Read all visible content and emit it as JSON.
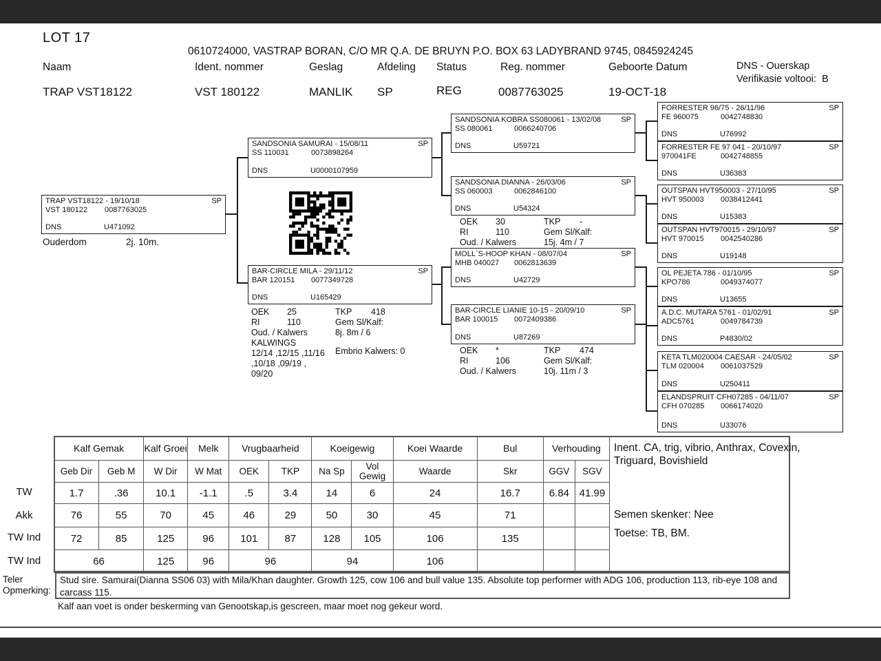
{
  "colors": {
    "top_bar": "#282828",
    "bottom_bar": "#282828",
    "divider": "#4a4a4a",
    "table_border": "#555555"
  },
  "page": {
    "lot_label": "LOT 17",
    "owner_line": "0610724000, VASTRAP BORAN, C/O MR Q.A. DE BRUYN P.O. BOX 63 LADYBRAND 9745, 0845924245",
    "footer_note": "Kalf aan voet  is onder beskerming van Genootskap,is gescreen, maar moet nog gekeur word."
  },
  "header": {
    "labels": {
      "naam": "Naam",
      "ident": "Ident. nommer",
      "geslag": "Geslag",
      "afdeling": "Afdeling",
      "status": "Status",
      "reg": "Reg. nommer",
      "geboorte": "Geboorte Datum",
      "dns_line1": "DNS - Ouerskap",
      "dns_line2": "Verifikasie voltooi:  B"
    },
    "values": {
      "naam": "TRAP VST18122",
      "ident": "VST 180122",
      "geslag": "MANLIK",
      "afdeling": "SP",
      "status": "REG",
      "reg": "0087763025",
      "geboorte": "19-OCT-18"
    }
  },
  "pedigree": {
    "animal": {
      "title": "TRAP VST18122 - 19/10/18",
      "flag": "SP",
      "id1": "VST 180122",
      "id2": "0087763025",
      "dns_label": "DNS",
      "dns": "U471092"
    },
    "ouderdom": {
      "label": "Ouderdom",
      "value": "2j. 10m."
    },
    "sire": {
      "title": "SANDSONIA SAMURAI - 15/08/11",
      "flag": "SP",
      "id1": "SS 110031",
      "id2": "0073898264",
      "dns_label": "DNS",
      "dns": "U0000107959"
    },
    "dam": {
      "title": "BAR-CIRCLE MILA - 29/11/12",
      "flag": "SP",
      "id1": "BAR 120151",
      "id2": "0077349728",
      "dns_label": "DNS",
      "dns": "U165429"
    },
    "pgs": {
      "title": "SANDSONIA KOBRA SS080061 - 13/02/08",
      "flag": "SP",
      "id1": "SS 080061",
      "id2": "0066240706",
      "dns_label": "DNS",
      "dns": "U59721"
    },
    "pgd": {
      "title": "SANDSONIA DIANNA - 26/03/06",
      "flag": "SP",
      "id1": "SS 060003",
      "id2": "0062846100",
      "dns_label": "DNS",
      "dns": "U54324"
    },
    "mgs": {
      "title": "MOLL`S-HOOP KHAN - 08/07/04",
      "flag": "SP",
      "id1": "MHB 040027",
      "id2": "0062813639",
      "dns_label": "DNS",
      "dns": "U42729"
    },
    "mgd": {
      "title": "BAR-CIRCLE LIANIE 10-15 - 20/09/10",
      "flag": "SP",
      "id1": "BAR 100015",
      "id2": "0072409386",
      "dns_label": "DNS",
      "dns": "U87269"
    },
    "ggp": [
      {
        "title": "FORRESTER 96/75 - 26/11/96",
        "flag": "SP",
        "id1": "FE 960075",
        "id2": "0042748830",
        "dns_label": "DNS",
        "dns": "U76992"
      },
      {
        "title": "FORRESTER FE 97 041 - 20/10/97",
        "flag": "SP",
        "id1": "970041FE",
        "id2": "0042748855",
        "dns_label": "DNS",
        "dns": "U36383"
      },
      {
        "title": "OUTSPAN HVT950003 - 27/10/95",
        "flag": "SP",
        "id1": "HVT 950003",
        "id2": "0038412441",
        "dns_label": "DNS",
        "dns": "U15383"
      },
      {
        "title": "OUTSPAN HVT970015 - 29/10/97",
        "flag": "SP",
        "id1": "HVT 970015",
        "id2": "0042540286",
        "dns_label": "DNS",
        "dns": "U19148"
      },
      {
        "title": "OL PEJETA 786 - 01/10/95",
        "flag": "SP",
        "id1": "KPO786",
        "id2": "0049374077",
        "dns_label": "DNS",
        "dns": "U13655"
      },
      {
        "title": "A.D.C. MUTARA 5761 - 01/02/91",
        "flag": "SP",
        "id1": "ADC5761",
        "id2": "0049784739",
        "dns_label": "DNS",
        "dns": "P4830/02"
      },
      {
        "title": "KETA TLM020004 CAESAR - 24/05/02",
        "flag": "SP",
        "id1": "TLM 020004",
        "id2": "0061037529",
        "dns_label": "DNS",
        "dns": "U250411"
      },
      {
        "title": "ELANDSPRUIT CFH07285 - 04/11/07",
        "flag": "SP",
        "id1": "CFH 070285",
        "id2": "0066174020",
        "dns_label": "DNS",
        "dns": "U33076"
      }
    ],
    "dam_stats": {
      "oek_label": "OEK",
      "oek": "25",
      "ri_label": "RI",
      "ri": "110",
      "oud_label": "Oud. / Kalwers",
      "kalwings_label": "KALWINGS",
      "kalwings_1": "12/14 ,12/15 ,11/16",
      "kalwings_2": ",10/18 ,09/19 ,",
      "kalwings_3": "09/20",
      "tkp_label": "TKP",
      "tkp": "418",
      "gem_label": "Gem Sl/Kalf:",
      "gem": "8j. 8m / 6",
      "embrio": "Embrio Kalwers: 0"
    },
    "pgd_stats": {
      "oek_label": "OEK",
      "oek": "30",
      "ri_label": "RI",
      "ri": "110",
      "oud_label": "Oud. / Kalwers",
      "tkp_label": "TKP",
      "tkp": "-",
      "gem_label": "Gem Sl/Kalf:",
      "gem": "15j. 4m / 7"
    },
    "mgd_stats": {
      "oek_label": "OEK",
      "oek": "*",
      "ri_label": "RI",
      "ri": "106",
      "oud_label": "Oud. / Kalwers",
      "tkp_label": "TKP",
      "tkp": "474",
      "gem_label": "Gem Sl/Kalf:",
      "gem": "10j. 11m / 3"
    }
  },
  "ebv_table": {
    "group_labels": [
      "Kalf Gemak",
      "Kalf Groei",
      "Melk",
      "Vrugbaarheid",
      "Koeigewig",
      "Koei Waarde",
      "Bul",
      "Verhouding"
    ],
    "subheaders": [
      "Geb Dir",
      "Geb M",
      "W Dir",
      "W Mat",
      "OEK",
      "TKP",
      "Na Sp",
      "Vol Gewig",
      "Waarde",
      "Skr",
      "GGV",
      "SGV"
    ],
    "row_labels": [
      "TW",
      "Akk",
      "TW Ind",
      "TW Ind"
    ],
    "rows": {
      "tw": [
        "1.7",
        ".36",
        "10.1",
        "-1.1",
        ".5",
        "3.4",
        "14",
        "6",
        "24",
        "16.7",
        "6.84",
        "41.99"
      ],
      "akk": [
        "76",
        "55",
        "70",
        "45",
        "46",
        "29",
        "50",
        "30",
        "45",
        "71",
        "",
        ""
      ],
      "twind": [
        "72",
        "85",
        "125",
        "96",
        "101",
        "87",
        "128",
        "105",
        "106",
        "135",
        "",
        ""
      ],
      "twind_merged": [
        "66",
        "125",
        "96",
        "96",
        "94",
        "106",
        "",
        "",
        ""
      ]
    }
  },
  "side_info": {
    "inent": "Inent. CA, trig, vibrio, Anthrax, Covexin, Triguard, Bovishield",
    "semen": "Semen skenker: Nee",
    "toetse": "Toetse: TB, BM."
  },
  "remarks": {
    "label_line1": "Teler",
    "label_line2": "Opmerking:",
    "text": "Stud sire. Samurai(Dianna SS06 03) with Mila/Khan daughter. Growth 125, cow 106 and bull value 135. Absolute top performer with ADG  106, production 113, rib-eye 108 and carcass 115."
  }
}
